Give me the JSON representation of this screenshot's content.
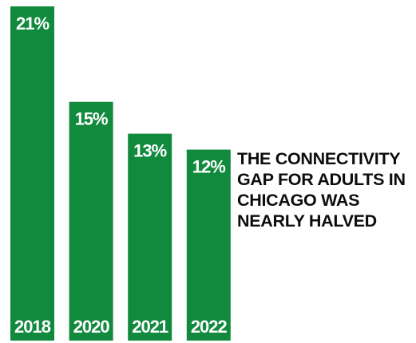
{
  "headline": {
    "lines": [
      "THE CONNECTIVITY",
      "GAP FOR ADULTS IN",
      "CHICAGO WAS",
      "NEARLY HALVED"
    ]
  },
  "chart_data": {
    "type": "bar",
    "categories": [
      "2018",
      "2020",
      "2021",
      "2022"
    ],
    "values": [
      21,
      15,
      13,
      12
    ],
    "value_labels": [
      "21%",
      "15%",
      "13%",
      "12%"
    ],
    "unit": "%",
    "title": "",
    "xlabel": "",
    "ylabel": "",
    "ylim": [
      0,
      21
    ],
    "grid": false,
    "legend": "none",
    "colors": {
      "bar": "#118a3e",
      "label": "#ffffff",
      "text": "#0d0d0d"
    }
  }
}
